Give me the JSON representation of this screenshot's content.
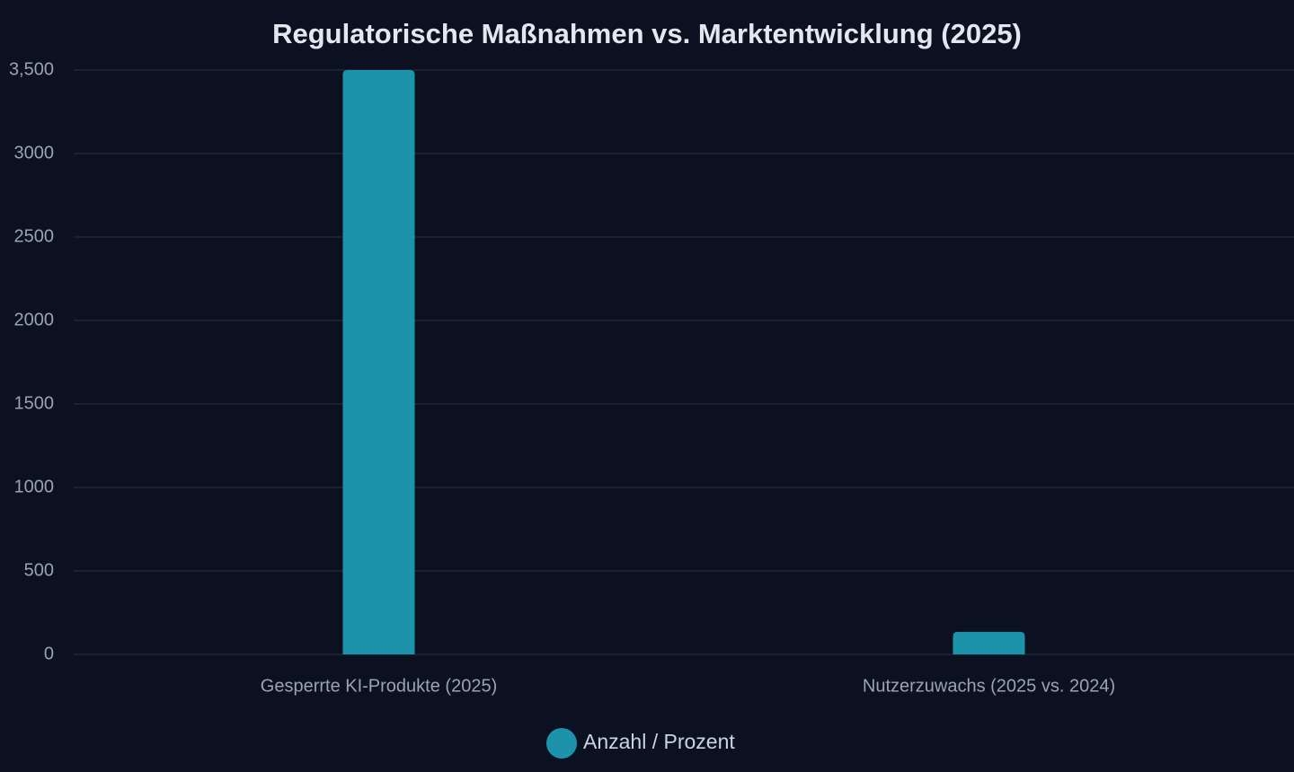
{
  "chart_data": {
    "type": "bar",
    "title": "Regulatorische Maßnahmen vs. Marktentwicklung (2025)",
    "categories": [
      "Gesperrte KI-Produkte (2025)",
      "Nutzerzuwachs (2025 vs. 2024)"
    ],
    "series": [
      {
        "name": "Anzahl / Prozent",
        "color": "#1c93aa",
        "values": [
          3500,
          135
        ]
      }
    ],
    "ylim": [
      0,
      3500
    ],
    "yticks": [
      0,
      500,
      1000,
      1500,
      2000,
      2500,
      3000,
      {
        "value": 3500,
        "label": "3,500"
      }
    ],
    "grid": true,
    "legend": "bottom"
  }
}
